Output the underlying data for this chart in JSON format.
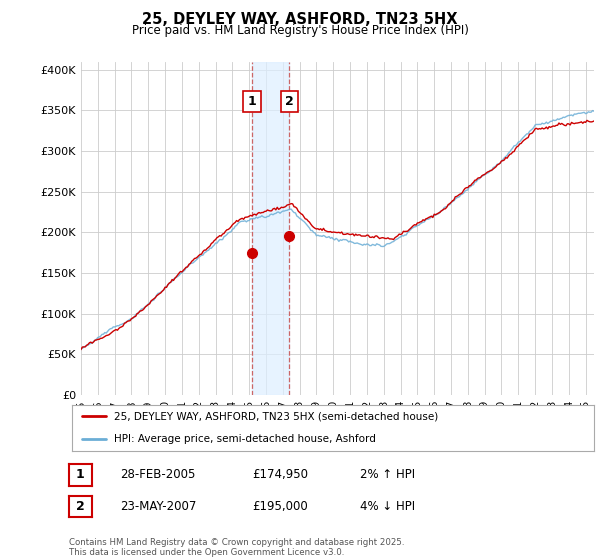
{
  "title": "25, DEYLEY WAY, ASHFORD, TN23 5HX",
  "subtitle": "Price paid vs. HM Land Registry's House Price Index (HPI)",
  "ylabel_ticks": [
    "£0",
    "£50K",
    "£100K",
    "£150K",
    "£200K",
    "£250K",
    "£300K",
    "£350K",
    "£400K"
  ],
  "ytick_values": [
    0,
    50000,
    100000,
    150000,
    200000,
    250000,
    300000,
    350000,
    400000
  ],
  "ylim": [
    0,
    410000
  ],
  "xlim_start": 1995.0,
  "xlim_end": 2025.5,
  "red_line_color": "#cc0000",
  "blue_line_color": "#6baed6",
  "marker1_x": 2005.16,
  "marker1_y": 174950,
  "marker2_x": 2007.39,
  "marker2_y": 195000,
  "shade_x1": 2005.16,
  "shade_x2": 2007.39,
  "legend_label_red": "25, DEYLEY WAY, ASHFORD, TN23 5HX (semi-detached house)",
  "legend_label_blue": "HPI: Average price, semi-detached house, Ashford",
  "table_rows": [
    {
      "num": "1",
      "date": "28-FEB-2005",
      "price": "£174,950",
      "hpi": "2% ↑ HPI"
    },
    {
      "num": "2",
      "date": "23-MAY-2007",
      "price": "£195,000",
      "hpi": "4% ↓ HPI"
    }
  ],
  "footnote": "Contains HM Land Registry data © Crown copyright and database right 2025.\nThis data is licensed under the Open Government Licence v3.0.",
  "bg_color": "#ffffff",
  "plot_bg_color": "#ffffff",
  "grid_color": "#cccccc",
  "shade_color": "#ddeeff"
}
